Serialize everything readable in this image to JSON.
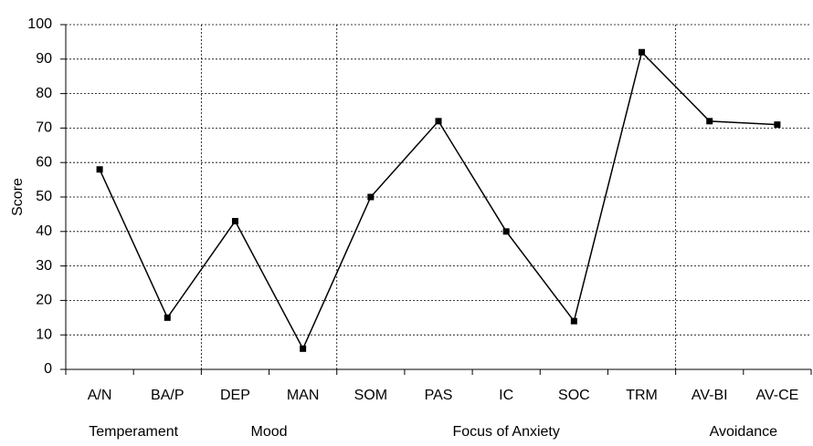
{
  "chart_data": {
    "type": "line",
    "y_label": "Score",
    "categories": [
      "A/N",
      "BA/P",
      "DEP",
      "MAN",
      "SOM",
      "PAS",
      "IC",
      "SOC",
      "TRM",
      "AV-BI",
      "AV-CE"
    ],
    "values": [
      58,
      15,
      43,
      6,
      50,
      72,
      40,
      14,
      92,
      72,
      71
    ],
    "color": "#000000",
    "groups": [
      {
        "label": "Temperament",
        "span": 2
      },
      {
        "label": "Mood",
        "span": 2
      },
      {
        "label": "Focus of Anxiety",
        "span": 5
      },
      {
        "label": "Avoidance",
        "span": 2
      }
    ],
    "ylim": [
      0,
      100
    ],
    "yticks": [
      0,
      10,
      20,
      30,
      40,
      50,
      60,
      70,
      80,
      90,
      100
    ],
    "grid": true
  }
}
